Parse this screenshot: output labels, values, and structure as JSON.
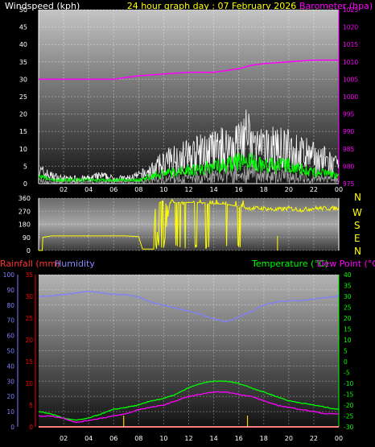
{
  "header": {
    "windspeed_label": "Windspeed (kph)",
    "graph_title": "24 hour graph day : 07 February 2026",
    "barometer_label": "Barometer (hpa)"
  },
  "colors": {
    "background": "#000000",
    "wind_speed": "#ffffff",
    "wind_gust_band": "#c8c8c8",
    "wind_avg": "#00ff00",
    "barometer": "#ff00ff",
    "direction": "#ffff00",
    "rainfall": "#ff0000",
    "humidity": "#8080ff",
    "temperature": "#00ff00",
    "dew_point": "#ff00ff",
    "rain_tick": "#ffcc00"
  },
  "hour_ticks": [
    "02",
    "04",
    "06",
    "08",
    "10",
    "12",
    "14",
    "16",
    "18",
    "20",
    "22",
    "00"
  ],
  "panel_labels": {
    "rainfall": "Rainfall (mm)",
    "humidity": "Humidity",
    "temperature": "Temperature (°C)",
    "dew_point": "Dew Point (°C)",
    "compass": [
      "N",
      "W",
      "S",
      "E",
      "N"
    ]
  },
  "chart_data": [
    {
      "type": "line",
      "title": "24 hour graph day : 07 February 2026",
      "xlabel": "",
      "x_range_hours": [
        0,
        24
      ],
      "grid": true,
      "left_axis": {
        "label": "Windspeed (kph)",
        "ylim": [
          0,
          50
        ],
        "ticks": [
          0,
          5,
          10,
          15,
          20,
          25,
          30,
          35,
          40,
          45,
          50
        ]
      },
      "right_axis": {
        "label": "Barometer (hpa)",
        "ylim": [
          975,
          1025
        ],
        "ticks": [
          975,
          980,
          985,
          990,
          995,
          1000,
          1005,
          1010,
          1015,
          1020,
          1025
        ]
      },
      "series": [
        {
          "name": "Barometer (hpa)",
          "axis": "right",
          "points": [
            [
              0,
              1005
            ],
            [
              2,
              1005
            ],
            [
              4,
              1005
            ],
            [
              6,
              1005
            ],
            [
              7,
              1005.5
            ],
            [
              8,
              1006
            ],
            [
              10,
              1006.5
            ],
            [
              12,
              1007
            ],
            [
              14,
              1007
            ],
            [
              15,
              1007.5
            ],
            [
              16,
              1008
            ],
            [
              17,
              1009
            ],
            [
              18,
              1009.5
            ],
            [
              20,
              1010
            ],
            [
              22,
              1010.5
            ],
            [
              24,
              1010.5
            ]
          ]
        },
        {
          "axis": "left",
          "role": "gust",
          "points": [
            [
              0,
              5
            ],
            [
              1,
              3
            ],
            [
              2,
              2
            ],
            [
              3,
              2
            ],
            [
              4,
              2
            ],
            [
              5,
              3
            ],
            [
              6,
              2
            ],
            [
              7,
              2
            ],
            [
              8,
              3
            ],
            [
              9,
              5
            ],
            [
              10,
              8
            ],
            [
              11,
              10
            ],
            [
              12,
              11
            ],
            [
              13,
              12
            ],
            [
              14,
              13
            ],
            [
              15,
              14
            ],
            [
              16,
              16
            ],
            [
              16.5,
              20
            ],
            [
              17,
              15
            ],
            [
              18,
              13
            ],
            [
              19,
              14
            ],
            [
              20,
              13
            ],
            [
              21,
              12
            ],
            [
              22,
              10
            ],
            [
              23,
              9
            ],
            [
              24,
              6
            ]
          ]
        },
        {
          "axis": "left",
          "role": "average",
          "points": [
            [
              0,
              2
            ],
            [
              1,
              1
            ],
            [
              2,
              1
            ],
            [
              3,
              1
            ],
            [
              4,
              1
            ],
            [
              5,
              1
            ],
            [
              6,
              1
            ],
            [
              7,
              1
            ],
            [
              8,
              1
            ],
            [
              9,
              2
            ],
            [
              10,
              3
            ],
            [
              11,
              3
            ],
            [
              12,
              4
            ],
            [
              13,
              4
            ],
            [
              14,
              5
            ],
            [
              15,
              5
            ],
            [
              16,
              6
            ],
            [
              17,
              6
            ],
            [
              18,
              5
            ],
            [
              19,
              5
            ],
            [
              20,
              5
            ],
            [
              21,
              4
            ],
            [
              22,
              3
            ],
            [
              23,
              3
            ],
            [
              24,
              2
            ]
          ]
        }
      ]
    },
    {
      "type": "line",
      "title": "",
      "x_range_hours": [
        0,
        24
      ],
      "grid": true,
      "left_axis": {
        "label": "",
        "ylim": [
          0,
          360
        ],
        "ticks": [
          0,
          90,
          180,
          270,
          360
        ]
      },
      "right_axis": {
        "label": "",
        "ticks": [
          "N",
          "W",
          "S",
          "E",
          "N"
        ]
      },
      "series": [
        {
          "axis": "left",
          "role": "direction",
          "points": [
            [
              0.3,
              0
            ],
            [
              0.3,
              90
            ],
            [
              1,
              100
            ],
            [
              2,
              100
            ],
            [
              4,
              100
            ],
            [
              6,
              100
            ],
            [
              7,
              100
            ],
            [
              8,
              95
            ],
            [
              8.3,
              10
            ],
            [
              8.8,
              10
            ],
            [
              9.2,
              10
            ],
            [
              9.3,
              300
            ],
            [
              9.6,
              20
            ],
            [
              10,
              20
            ],
            [
              10.5,
              330
            ],
            [
              11,
              330
            ],
            [
              12,
              330
            ],
            [
              13,
              330
            ],
            [
              14,
              320
            ],
            [
              15,
              320
            ],
            [
              16,
              300
            ],
            [
              17,
              290
            ],
            [
              18,
              290
            ],
            [
              19,
              280
            ],
            [
              20,
              290
            ],
            [
              21,
              280
            ],
            [
              22,
              290
            ],
            [
              23,
              290
            ],
            [
              24,
              290
            ]
          ]
        }
      ]
    },
    {
      "type": "line",
      "title": "",
      "xlabel": "",
      "x_range_hours": [
        0,
        24
      ],
      "grid": true,
      "axes": [
        {
          "label": "Humidity",
          "ylim": [
            0,
            100
          ],
          "ticks": [
            0,
            10,
            20,
            30,
            40,
            50,
            60,
            70,
            80,
            90,
            100
          ]
        },
        {
          "label": "Rainfall (mm)",
          "ylim": [
            0,
            35
          ],
          "ticks": [
            0,
            5,
            10,
            15,
            20,
            25,
            30,
            35
          ]
        },
        {
          "label": "Temperature (°C) / Dew Point (°C)",
          "ylim": [
            -30,
            40
          ],
          "ticks": [
            -30,
            -25,
            -20,
            -15,
            -10,
            -5,
            0,
            5,
            10,
            15,
            20,
            25,
            30,
            35,
            40
          ]
        }
      ],
      "series": [
        {
          "name": "Humidity",
          "axis": "Humidity",
          "points": [
            [
              0,
              86
            ],
            [
              1,
              86
            ],
            [
              2,
              87
            ],
            [
              3,
              88
            ],
            [
              4,
              89
            ],
            [
              5,
              88
            ],
            [
              6,
              87
            ],
            [
              7,
              87
            ],
            [
              8,
              85
            ],
            [
              9,
              82
            ],
            [
              10,
              80
            ],
            [
              11,
              78
            ],
            [
              12,
              76
            ],
            [
              13,
              74
            ],
            [
              14,
              71
            ],
            [
              15,
              69
            ],
            [
              16,
              72
            ],
            [
              17,
              76
            ],
            [
              18,
              80
            ],
            [
              19,
              82
            ],
            [
              20,
              83
            ],
            [
              21,
              83
            ],
            [
              22,
              84
            ],
            [
              23,
              85
            ],
            [
              24,
              86
            ]
          ]
        },
        {
          "name": "Temperature (°C)",
          "axis": "Temperature (°C) / Dew Point (°C)",
          "points": [
            [
              0,
              -23
            ],
            [
              1,
              -24
            ],
            [
              2,
              -26
            ],
            [
              3,
              -27
            ],
            [
              4,
              -26
            ],
            [
              5,
              -24
            ],
            [
              6,
              -22
            ],
            [
              7,
              -21
            ],
            [
              8,
              -20
            ],
            [
              9,
              -18
            ],
            [
              10,
              -17
            ],
            [
              11,
              -15
            ],
            [
              12,
              -12
            ],
            [
              13,
              -10
            ],
            [
              14,
              -9
            ],
            [
              15,
              -9
            ],
            [
              16,
              -10
            ],
            [
              17,
              -12
            ],
            [
              18,
              -14
            ],
            [
              19,
              -16
            ],
            [
              20,
              -18
            ],
            [
              21,
              -19
            ],
            [
              22,
              -20
            ],
            [
              23,
              -21
            ],
            [
              24,
              -22
            ]
          ]
        },
        {
          "name": "Dew Point (°C)",
          "axis": "Temperature (°C) / Dew Point (°C)",
          "points": [
            [
              0,
              -25
            ],
            [
              1,
              -25
            ],
            [
              2,
              -26
            ],
            [
              3,
              -28
            ],
            [
              4,
              -27
            ],
            [
              5,
              -26
            ],
            [
              6,
              -25
            ],
            [
              7,
              -24
            ],
            [
              8,
              -22
            ],
            [
              9,
              -21
            ],
            [
              10,
              -20
            ],
            [
              11,
              -18
            ],
            [
              12,
              -16
            ],
            [
              13,
              -15
            ],
            [
              14,
              -14
            ],
            [
              15,
              -14
            ],
            [
              16,
              -15
            ],
            [
              17,
              -16
            ],
            [
              18,
              -18
            ],
            [
              19,
              -20
            ],
            [
              20,
              -21
            ],
            [
              21,
              -22
            ],
            [
              22,
              -23
            ],
            [
              23,
              -24
            ],
            [
              24,
              -24
            ]
          ]
        },
        {
          "name": "Rainfall (mm)",
          "axis": "Rainfall (mm)",
          "points": [
            [
              0,
              0
            ],
            [
              24,
              0
            ]
          ]
        }
      ],
      "markers": [
        {
          "hour": 6.8,
          "role": "rain-tick"
        },
        {
          "hour": 16.7,
          "role": "rain-tick"
        }
      ]
    }
  ]
}
